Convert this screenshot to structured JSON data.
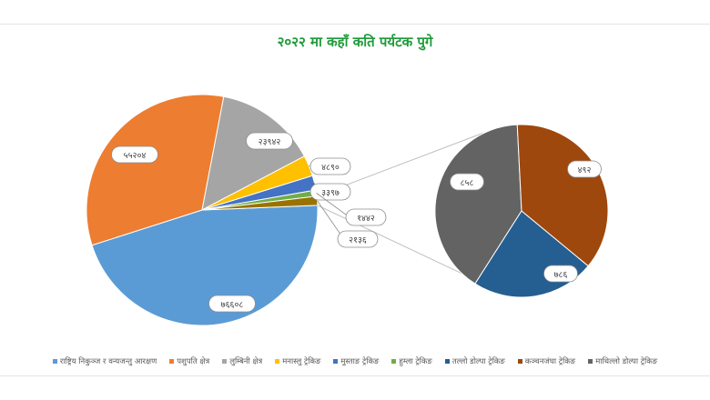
{
  "colors": {
    "title": "#1f9a3a",
    "connector": "#bfbfbf",
    "label_border": "#8c8c8c"
  },
  "chart_data": {
    "type": "pie",
    "subtype": "pie-of-pie",
    "title": "२०२२ मा कहाँ कति पर्यटक पुगे",
    "legend_position": "bottom",
    "categories": [
      "राष्ट्रिय निकुञ्ज र वन्यजन्तु आरक्षण",
      "पशुपति क्षेत्र",
      "लुम्बिनी क्षेत्र",
      "मनास्लु ट्रेकिङ",
      "मुस्ताङ ट्रेकिङ",
      "हुम्ला ट्रेकिङ",
      "तल्लो डोल्पा ट्रेकिङ",
      "कञ्चनजंघा ट्रेकिङ",
      "माथिल्लो डोल्पा ट्रेकिङ"
    ],
    "main_labels": [
      "७६६०८",
      "५५२०४",
      "२३९४२",
      "४८९०",
      "३३९७",
      "१४४२"
    ],
    "main_values": [
      76608,
      55204,
      23942,
      4890,
      3397,
      1442
    ],
    "other_label": "२१३६",
    "other_value": 2136,
    "secondary_labels": [
      "८५८",
      "४९२",
      "७८६"
    ],
    "secondary_values": [
      858,
      492,
      786
    ],
    "colors": [
      "#5b9bd5",
      "#ed7d31",
      "#a5a5a5",
      "#ffc000",
      "#4472c4",
      "#70ad47",
      "#255e91",
      "#9e480e",
      "#636363"
    ],
    "other_color": "#997300"
  }
}
